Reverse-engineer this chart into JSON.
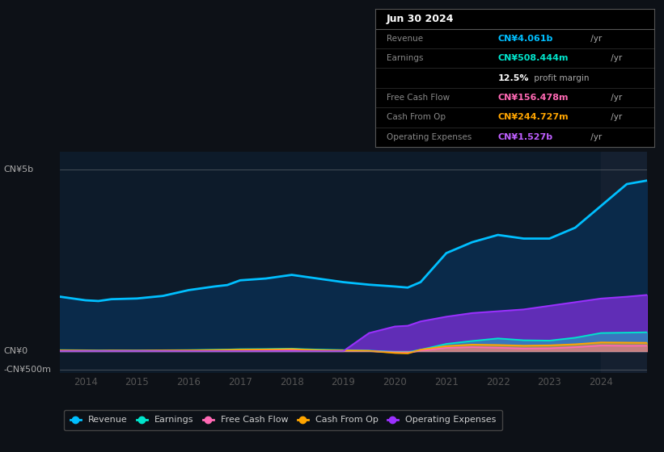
{
  "bg_color": "#0d1117",
  "plot_bg_color": "#0d1b2a",
  "title": "Jun 30 2024",
  "info_box_rows": [
    {
      "label": "Revenue",
      "value": "CN¥4.061b",
      "suffix": " /yr",
      "value_color": "#00bfff"
    },
    {
      "label": "Earnings",
      "value": "CN¥508.444m",
      "suffix": " /yr",
      "value_color": "#00e5cc"
    },
    {
      "label": "",
      "value": "12.5%",
      "suffix": " profit margin",
      "value_color": "#ffffff"
    },
    {
      "label": "Free Cash Flow",
      "value": "CN¥156.478m",
      "suffix": " /yr",
      "value_color": "#ff69b4"
    },
    {
      "label": "Cash From Op",
      "value": "CN¥244.727m",
      "suffix": " /yr",
      "value_color": "#ffa500"
    },
    {
      "label": "Operating Expenses",
      "value": "CN¥1.527b",
      "suffix": " /yr",
      "value_color": "#bf5fff"
    }
  ],
  "xlim": [
    2013.5,
    2024.9
  ],
  "ylim": [
    -600,
    5500
  ],
  "ytick_positions": [
    -500,
    0,
    5000
  ],
  "ytick_labels": [
    "-CN¥500m",
    "CN¥0",
    "CN¥5b"
  ],
  "xticks": [
    2014,
    2015,
    2016,
    2017,
    2018,
    2019,
    2020,
    2021,
    2022,
    2023,
    2024
  ],
  "colors": {
    "revenue": "#00bfff",
    "earnings": "#00e5cc",
    "fcf": "#ff69b4",
    "cashfromop": "#ffa500",
    "opex": "#9b30ff"
  },
  "revenue_fill_color": "#0a2a4a",
  "series": {
    "years": [
      2013.5,
      2014.0,
      2014.25,
      2014.5,
      2015.0,
      2015.5,
      2016.0,
      2016.5,
      2016.75,
      2017.0,
      2017.5,
      2017.75,
      2018.0,
      2018.25,
      2018.5,
      2019.0,
      2019.5,
      2020.0,
      2020.25,
      2020.5,
      2021.0,
      2021.5,
      2022.0,
      2022.5,
      2023.0,
      2023.5,
      2024.0,
      2024.5,
      2024.9
    ],
    "revenue": [
      1500,
      1400,
      1380,
      1430,
      1450,
      1520,
      1680,
      1780,
      1820,
      1950,
      2000,
      2050,
      2100,
      2050,
      2000,
      1900,
      1830,
      1780,
      1750,
      1900,
      2700,
      3000,
      3200,
      3100,
      3100,
      3400,
      4000,
      4600,
      4700
    ],
    "earnings": [
      30,
      25,
      20,
      22,
      20,
      25,
      30,
      40,
      45,
      55,
      60,
      65,
      70,
      55,
      45,
      30,
      15,
      -20,
      -30,
      40,
      200,
      280,
      350,
      300,
      290,
      370,
      500,
      510,
      520
    ],
    "fcf": [
      15,
      10,
      8,
      10,
      10,
      12,
      15,
      18,
      20,
      25,
      28,
      30,
      32,
      22,
      15,
      10,
      5,
      -30,
      -40,
      15,
      90,
      110,
      95,
      75,
      80,
      110,
      155,
      148,
      150
    ],
    "cashfromop": [
      20,
      15,
      12,
      15,
      12,
      18,
      22,
      30,
      35,
      42,
      48,
      52,
      58,
      42,
      30,
      18,
      8,
      -50,
      -60,
      40,
      140,
      180,
      170,
      150,
      160,
      190,
      240,
      235,
      230
    ],
    "opex": [
      0,
      0,
      0,
      0,
      0,
      0,
      0,
      0,
      0,
      0,
      0,
      0,
      0,
      0,
      0,
      0,
      500,
      680,
      700,
      820,
      950,
      1050,
      1100,
      1150,
      1250,
      1350,
      1450,
      1500,
      1550
    ]
  },
  "legend": [
    {
      "label": "Revenue",
      "color": "#00bfff"
    },
    {
      "label": "Earnings",
      "color": "#00e5cc"
    },
    {
      "label": "Free Cash Flow",
      "color": "#ff69b4"
    },
    {
      "label": "Cash From Op",
      "color": "#ffa500"
    },
    {
      "label": "Operating Expenses",
      "color": "#9b30ff"
    }
  ],
  "highlight_x_start": 2024.0,
  "highlight_color": "#152030"
}
